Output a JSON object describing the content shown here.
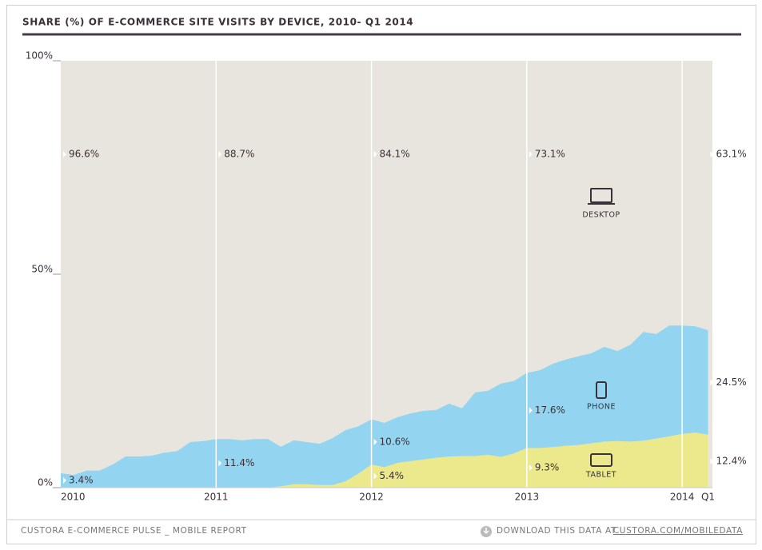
{
  "chart_data": {
    "type": "stacked-area",
    "title": "SHARE (%) OF E-COMMERCE SITE VISITS BY DEVICE, 2010- Q1 2014",
    "categories": [
      "2010",
      null,
      null,
      null,
      null,
      null,
      null,
      null,
      null,
      null,
      null,
      null,
      "2011",
      null,
      null,
      null,
      null,
      null,
      null,
      null,
      null,
      null,
      null,
      null,
      "2012",
      null,
      null,
      null,
      null,
      null,
      null,
      null,
      null,
      null,
      null,
      null,
      "2013",
      null,
      null,
      null,
      null,
      null,
      null,
      null,
      null,
      null,
      null,
      null,
      "2014",
      null,
      "Q1"
    ],
    "ylim": [
      0,
      100
    ],
    "yticks": [
      {
        "value": 0,
        "label": "0%"
      },
      {
        "value": 50,
        "label": "50%"
      },
      {
        "value": 100,
        "label": "100%"
      }
    ],
    "grid": true,
    "series": [
      {
        "name": "TABLET",
        "color": "#ebe98c",
        "values": [
          0,
          0,
          0,
          0,
          0,
          0,
          0,
          0,
          0,
          0,
          0,
          0,
          0,
          0,
          0,
          0,
          0,
          0.3,
          0.8,
          0.8,
          0.6,
          0.6,
          1.5,
          3.3,
          5.4,
          4.8,
          5.8,
          6.2,
          6.6,
          7.0,
          7.3,
          7.4,
          7.4,
          7.7,
          7.2,
          8.0,
          9.3,
          9.3,
          9.5,
          9.8,
          10.0,
          10.4,
          10.8,
          10.9,
          10.8,
          11.0,
          11.5,
          12.0,
          12.6,
          12.9,
          12.4
        ],
        "value_labels": [
          null,
          null,
          null,
          null,
          null,
          null,
          null,
          null,
          null,
          null,
          null,
          null,
          null,
          null,
          null,
          null,
          null,
          null,
          null,
          null,
          null,
          null,
          null,
          null,
          "5.4%",
          null,
          null,
          null,
          null,
          null,
          null,
          null,
          null,
          null,
          null,
          null,
          "9.3%",
          null,
          null,
          null,
          null,
          null,
          null,
          null,
          null,
          null,
          null,
          null,
          null,
          null,
          "12.4%"
        ]
      },
      {
        "name": "PHONE",
        "color": "#93d5f0",
        "values": [
          3.4,
          3.0,
          4.0,
          4.0,
          5.4,
          7.3,
          7.3,
          7.5,
          8.2,
          8.6,
          10.7,
          10.9,
          11.4,
          11.4,
          11.1,
          11.4,
          11.4,
          9.3,
          10.3,
          9.9,
          9.7,
          11.0,
          12.0,
          11.1,
          10.6,
          10.4,
          10.7,
          11.2,
          11.4,
          11.2,
          12.4,
          11.2,
          14.9,
          15.0,
          17.2,
          17.0,
          17.6,
          18.2,
          19.5,
          20.2,
          20.8,
          21.1,
          22.2,
          21.1,
          22.7,
          25.5,
          24.5,
          26.0,
          25.4,
          24.9,
          24.5
        ],
        "value_labels": [
          "3.4%",
          null,
          null,
          null,
          null,
          null,
          null,
          null,
          null,
          null,
          null,
          null,
          "11.4%",
          null,
          null,
          null,
          null,
          null,
          null,
          null,
          null,
          null,
          null,
          null,
          "10.6%",
          null,
          null,
          null,
          null,
          null,
          null,
          null,
          null,
          null,
          null,
          null,
          "17.6%",
          null,
          null,
          null,
          null,
          null,
          null,
          null,
          null,
          null,
          null,
          null,
          null,
          null,
          "24.5%"
        ]
      },
      {
        "name": "DESKTOP",
        "color": "#e8e4de",
        "values": [
          96.6,
          97.0,
          96.0,
          96.0,
          94.6,
          92.7,
          92.7,
          92.5,
          91.8,
          91.4,
          89.3,
          89.1,
          88.7,
          88.6,
          88.9,
          88.6,
          88.6,
          90.4,
          88.9,
          89.3,
          89.7,
          88.4,
          86.5,
          85.6,
          84.1,
          84.8,
          83.5,
          82.6,
          82.0,
          81.8,
          80.3,
          81.4,
          77.7,
          77.3,
          75.6,
          75.0,
          73.1,
          72.5,
          71.0,
          70.0,
          69.2,
          68.5,
          67.0,
          68.0,
          66.5,
          63.5,
          64.0,
          62.0,
          62.0,
          62.2,
          63.1
        ],
        "value_labels": [
          "96.6%",
          null,
          null,
          null,
          null,
          null,
          null,
          null,
          null,
          null,
          null,
          null,
          "88.7%",
          null,
          null,
          null,
          null,
          null,
          null,
          null,
          null,
          null,
          null,
          null,
          "84.1%",
          null,
          null,
          null,
          null,
          null,
          null,
          null,
          null,
          null,
          null,
          null,
          "73.1%",
          null,
          null,
          null,
          null,
          null,
          null,
          null,
          null,
          null,
          null,
          null,
          null,
          null,
          "63.1%"
        ]
      }
    ]
  },
  "footer": {
    "source": "CUSTORA E-COMMERCE PULSE _ MOBILE REPORT",
    "download": "DOWNLOAD THIS DATA AT",
    "link": "CUSTORA.COM/MOBILEDATA"
  }
}
